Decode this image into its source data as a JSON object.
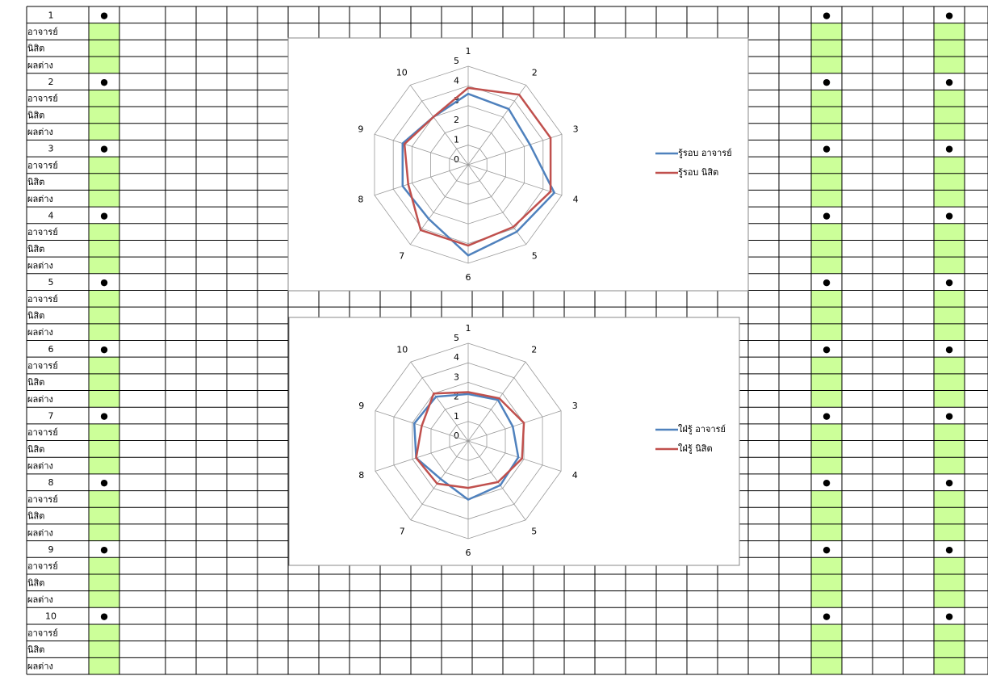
{
  "sheet": {
    "bullet": "●",
    "groups": [
      {
        "number": "1",
        "rows": [
          "อาจารย์",
          "นิสิต",
          "ผลต่าง"
        ]
      },
      {
        "number": "2",
        "rows": [
          "อาจารย์",
          "นิสิต",
          "ผลต่าง"
        ]
      },
      {
        "number": "3",
        "rows": [
          "อาจารย์",
          "นิสิต",
          "ผลต่าง"
        ]
      },
      {
        "number": "4",
        "rows": [
          "อาจารย์",
          "นิสิต",
          "ผลต่าง"
        ]
      },
      {
        "number": "5",
        "rows": [
          "อาจารย์",
          "นิสิต",
          "ผลต่าง"
        ]
      },
      {
        "number": "6",
        "rows": [
          "อาจารย์",
          "นิสิต",
          "ผลต่าง"
        ]
      },
      {
        "number": "7",
        "rows": [
          "อาจารย์",
          "นิสิต",
          "ผลต่าง"
        ]
      },
      {
        "number": "8",
        "rows": [
          "อาจารย์",
          "นิสิต",
          "ผลต่าง"
        ]
      },
      {
        "number": "9",
        "rows": [
          "อาจารย์",
          "นิสิต",
          "ผลต่าง"
        ]
      },
      {
        "number": "10",
        "rows": [
          "อาจารย์",
          "นิสิต",
          "ผลต่าง"
        ]
      }
    ]
  },
  "chart_data": [
    {
      "type": "radar",
      "categories": [
        "1",
        "2",
        "3",
        "4",
        "5",
        "6",
        "7",
        "8",
        "9",
        "10"
      ],
      "rlim": [
        0,
        5
      ],
      "rticks": [
        0,
        1,
        2,
        3,
        4,
        5
      ],
      "grid": true,
      "legend": "right",
      "series": [
        {
          "name": "รู้รอบ อาจารย์",
          "color": "#4f81bd",
          "values": [
            3.6,
            3.5,
            3.3,
            4.6,
            4.2,
            4.6,
            3.4,
            3.5,
            3.5,
            3.0
          ]
        },
        {
          "name": "รู้รอบ นิสิต",
          "color": "#c0504d",
          "values": [
            3.9,
            4.4,
            4.4,
            4.4,
            3.9,
            4.1,
            4.1,
            3.2,
            3.4,
            3.0
          ]
        }
      ]
    },
    {
      "type": "radar",
      "categories": [
        "1",
        "2",
        "3",
        "4",
        "5",
        "6",
        "7",
        "8",
        "9",
        "10"
      ],
      "rlim": [
        0,
        5
      ],
      "rticks": [
        0,
        1,
        2,
        3,
        4,
        5
      ],
      "grid": true,
      "legend": "right",
      "series": [
        {
          "name": "ใฝ่รู้ อาจารย์",
          "color": "#4f81bd",
          "values": [
            2.4,
            2.6,
            2.4,
            2.7,
            2.8,
            3.0,
            2.4,
            2.8,
            2.9,
            2.8
          ]
        },
        {
          "name": "ใฝ่รู้ นิสิต",
          "color": "#c0504d",
          "values": [
            2.5,
            2.7,
            3.0,
            2.9,
            2.6,
            2.4,
            2.7,
            2.8,
            2.5,
            3.0
          ]
        }
      ]
    }
  ]
}
